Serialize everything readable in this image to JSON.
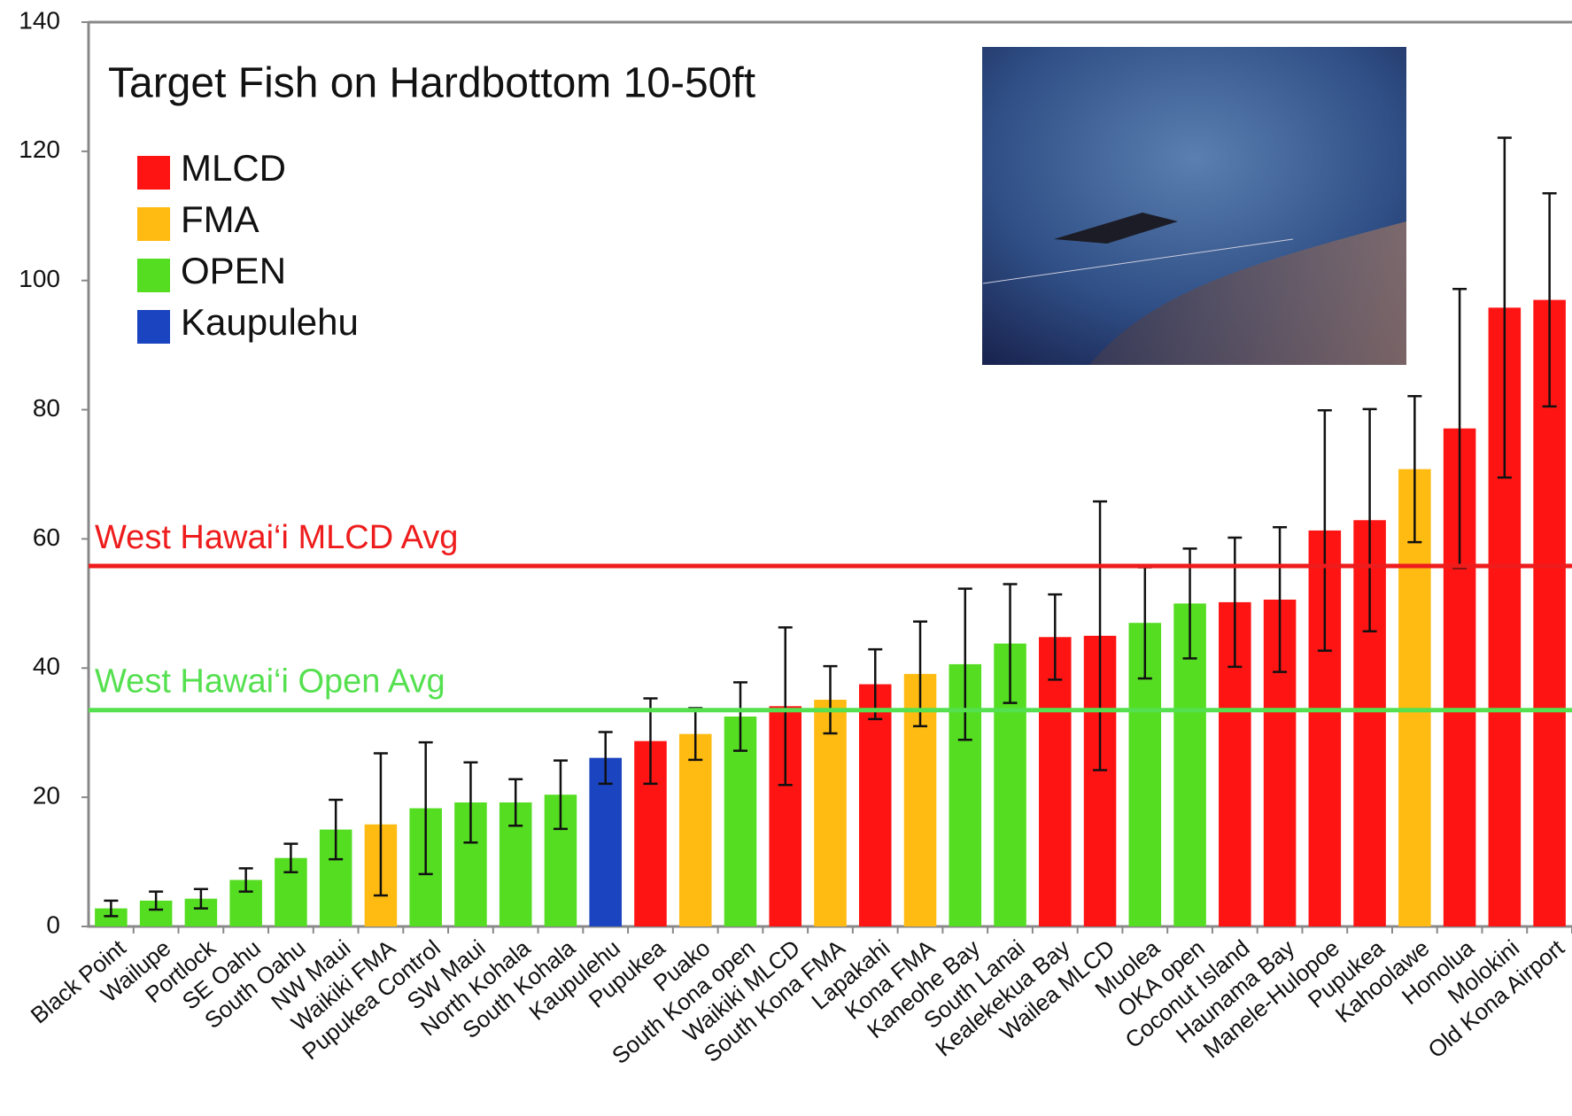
{
  "chart_data": {
    "type": "bar",
    "title": "Target Fish on Hardbottom 10-50ft",
    "categories": [
      "Black Point",
      "Wailupe",
      "Portlock",
      "SE Oahu",
      "South Oahu",
      "NW Maui",
      "Waikiki FMA",
      "Pupukea Control",
      "SW Maui",
      "North Kohala",
      "South Kohala",
      "Kaupulehu",
      "Pupukea",
      "Puako",
      "South Kona open",
      "Waikiki MLCD",
      "South Kona FMA",
      "Lapakahi",
      "Kona FMA",
      "Kaneohe Bay",
      "South Lanai",
      "Kealekekua Bay",
      "Wailea MLCD",
      "Muolea",
      "OKA open",
      "Coconut Island",
      "Haunama Bay",
      "Manele-Hulopoe",
      "Pupukea",
      "Kahoolawe",
      "Honolua",
      "Molokini",
      "Old Kona Airport"
    ],
    "series": [
      {
        "name": "MLCD",
        "color": "#ff1414",
        "values": [
          null,
          null,
          null,
          null,
          null,
          null,
          null,
          null,
          null,
          null,
          null,
          null,
          28.7,
          null,
          null,
          34.1,
          null,
          37.5,
          null,
          null,
          null,
          44.8,
          45.0,
          null,
          null,
          50.2,
          50.6,
          61.3,
          62.9,
          null,
          77.1,
          95.8,
          97.0
        ],
        "errors": [
          null,
          null,
          null,
          null,
          null,
          null,
          null,
          null,
          null,
          null,
          null,
          null,
          6.6,
          null,
          null,
          12.2,
          null,
          5.4,
          null,
          null,
          null,
          6.6,
          20.8,
          null,
          null,
          10,
          11.2,
          18.6,
          17.2,
          null,
          21.6,
          26.3,
          16.5
        ]
      },
      {
        "name": "FMA",
        "color": "#ffbb11",
        "values": [
          null,
          null,
          null,
          null,
          null,
          null,
          15.8,
          null,
          null,
          null,
          null,
          null,
          null,
          29.8,
          null,
          null,
          35.1,
          null,
          39.1,
          null,
          null,
          null,
          null,
          null,
          null,
          null,
          null,
          null,
          null,
          70.8,
          null,
          null,
          null
        ],
        "errors": [
          null,
          null,
          null,
          null,
          null,
          null,
          11,
          null,
          null,
          null,
          null,
          null,
          null,
          4,
          null,
          null,
          5.2,
          null,
          8.1,
          null,
          null,
          null,
          null,
          null,
          null,
          null,
          null,
          null,
          null,
          11.3,
          null,
          null,
          null
        ]
      },
      {
        "name": "OPEN",
        "color": "#55dd22",
        "values": [
          2.8,
          4.0,
          4.3,
          7.2,
          10.6,
          15.0,
          null,
          18.3,
          19.2,
          19.2,
          20.4,
          null,
          null,
          null,
          32.5,
          null,
          null,
          null,
          null,
          40.6,
          43.8,
          null,
          null,
          47.0,
          50.0,
          null,
          null,
          null,
          null,
          null,
          null,
          null,
          null
        ],
        "errors": [
          1.2,
          1.4,
          1.5,
          1.8,
          2.2,
          4.6,
          null,
          10.2,
          6.2,
          3.6,
          5.3,
          null,
          null,
          null,
          5.3,
          null,
          null,
          null,
          null,
          11.7,
          9.2,
          null,
          null,
          8.6,
          8.5,
          null,
          null,
          null,
          null,
          null,
          null,
          null,
          null
        ]
      },
      {
        "name": "Kaupulehu",
        "color": "#1a44c0",
        "values": [
          null,
          null,
          null,
          null,
          null,
          null,
          null,
          null,
          null,
          null,
          null,
          26.1,
          null,
          null,
          null,
          null,
          null,
          null,
          null,
          null,
          null,
          null,
          null,
          null,
          null,
          null,
          null,
          null,
          null,
          null,
          null,
          null,
          null
        ],
        "errors": [
          null,
          null,
          null,
          null,
          null,
          null,
          null,
          null,
          null,
          null,
          null,
          4,
          null,
          null,
          null,
          null,
          null,
          null,
          null,
          null,
          null,
          null,
          null,
          null,
          null,
          null,
          null,
          null,
          null,
          null,
          null,
          null,
          null
        ]
      }
    ],
    "reference_lines": [
      {
        "label": "West Hawai‘i MLCD Avg",
        "value": 55.8,
        "color": "#ee1c1c"
      },
      {
        "label": "West Hawai‘i Open Avg",
        "value": 33.5,
        "color": "#55e050"
      }
    ],
    "ylim": [
      0,
      140
    ],
    "yticks": [
      0,
      20,
      40,
      60,
      80,
      100,
      120,
      140
    ],
    "grid": false
  }
}
